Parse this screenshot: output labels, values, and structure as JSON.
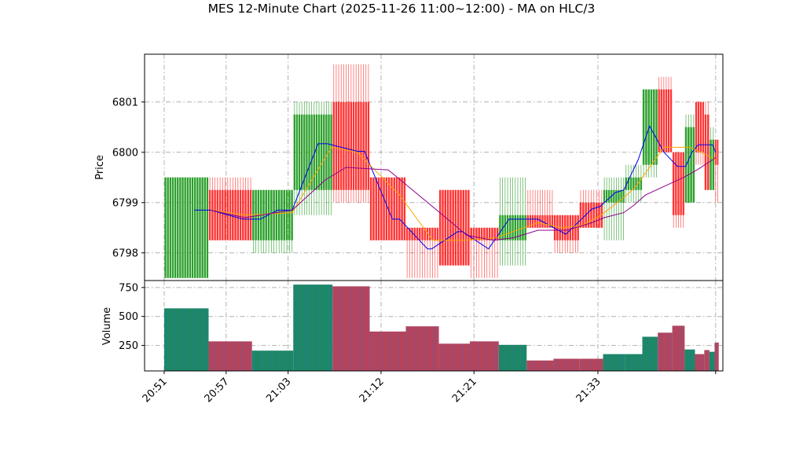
{
  "chart_data": {
    "type": "candlestick",
    "title": "MES 12-Minute Chart (2025-11-26 11:00~12:00) - MA on HLC/3",
    "price_panel": {
      "ylabel": "Price",
      "ylim": [
        6797.45,
        6801.95
      ],
      "yticks": [
        6798,
        6799,
        6800,
        6801
      ],
      "ytick_labels": [
        "6798",
        "6799",
        "6800",
        "6801"
      ],
      "grid": true
    },
    "volume_panel": {
      "ylabel": "Volume",
      "ylim": [
        30,
        810
      ],
      "yticks": [
        250,
        500,
        750
      ],
      "ytick_labels": [
        "250",
        "500",
        "750"
      ],
      "grid": true
    },
    "x_axis": {
      "tick_labels": [
        "20:51",
        "20:57",
        "21:03",
        "21:12",
        "21:21",
        "21:33"
      ],
      "tick_positions_minutes": [
        0,
        6,
        12,
        21,
        30,
        42
      ],
      "xlim_minutes": [
        -1.9,
        54.1
      ]
    },
    "candles": [
      {
        "t": 0,
        "w": 4.3,
        "open": 6799.5,
        "high": 6799.5,
        "low": 6797.5,
        "close": 6797.5,
        "volume": 570,
        "dir": "up"
      },
      {
        "t": 4.3,
        "w": 4.2,
        "open": 6799.25,
        "high": 6799.5,
        "low": 6798.25,
        "close": 6798.25,
        "volume": 285,
        "dir": "down"
      },
      {
        "t": 8.5,
        "w": 4.0,
        "open": 6799.25,
        "high": 6799.25,
        "low": 6798.0,
        "close": 6798.25,
        "volume": 205,
        "dir": "up"
      },
      {
        "t": 12.5,
        "w": 3.8,
        "open": 6800.75,
        "high": 6801.0,
        "low": 6798.75,
        "close": 6799.25,
        "volume": 775,
        "dir": "up"
      },
      {
        "t": 16.3,
        "w": 3.6,
        "open": 6801.0,
        "high": 6801.75,
        "low": 6799.0,
        "close": 6799.25,
        "volume": 760,
        "dir": "down"
      },
      {
        "t": 19.9,
        "w": 3.5,
        "open": 6799.5,
        "high": 6799.5,
        "low": 6798.25,
        "close": 6798.25,
        "volume": 370,
        "dir": "down"
      },
      {
        "t": 23.4,
        "w": 3.2,
        "open": 6798.5,
        "high": 6798.5,
        "low": 6797.5,
        "close": 6798.25,
        "volume": 415,
        "dir": "down"
      },
      {
        "t": 26.6,
        "w": 3.0,
        "open": 6799.25,
        "high": 6799.25,
        "low": 6797.75,
        "close": 6797.75,
        "volume": 265,
        "dir": "down"
      },
      {
        "t": 29.6,
        "w": 2.8,
        "open": 6798.5,
        "high": 6798.5,
        "low": 6797.5,
        "close": 6798.25,
        "volume": 285,
        "dir": "down"
      },
      {
        "t": 32.4,
        "w": 2.7,
        "open": 6798.25,
        "high": 6799.5,
        "low": 6797.75,
        "close": 6798.75,
        "volume": 255,
        "dir": "up"
      },
      {
        "t": 35.1,
        "w": 2.6,
        "open": 6798.75,
        "high": 6799.25,
        "low": 6798.5,
        "close": 6798.5,
        "volume": 120,
        "dir": "down"
      },
      {
        "t": 37.7,
        "w": 2.5,
        "open": 6798.75,
        "high": 6798.75,
        "low": 6798.0,
        "close": 6798.25,
        "volume": 135,
        "dir": "down"
      },
      {
        "t": 40.2,
        "w": 2.3,
        "open": 6799.0,
        "high": 6799.25,
        "low": 6798.5,
        "close": 6798.5,
        "volume": 135,
        "dir": "down"
      },
      {
        "t": 42.5,
        "w": 2.1,
        "open": 6799.25,
        "high": 6799.5,
        "low": 6798.25,
        "close": 6799.0,
        "volume": 175,
        "dir": "up"
      },
      {
        "t": 44.6,
        "w": 1.7,
        "open": 6799.5,
        "high": 6799.75,
        "low": 6799.0,
        "close": 6799.25,
        "volume": 175,
        "dir": "up"
      },
      {
        "t": 46.3,
        "w": 1.5,
        "open": 6801.25,
        "high": 6801.25,
        "low": 6799.5,
        "close": 6799.75,
        "volume": 325,
        "dir": "up"
      },
      {
        "t": 47.8,
        "w": 1.4,
        "open": 6801.25,
        "high": 6801.5,
        "low": 6800.0,
        "close": 6800.0,
        "volume": 360,
        "dir": "down"
      },
      {
        "t": 49.2,
        "w": 1.2,
        "open": 6800.0,
        "high": 6800.0,
        "low": 6798.5,
        "close": 6798.75,
        "volume": 420,
        "dir": "down"
      },
      {
        "t": 50.4,
        "w": 1.0,
        "open": 6800.5,
        "high": 6800.75,
        "low": 6799.0,
        "close": 6799.0,
        "volume": 215,
        "dir": "up"
      },
      {
        "t": 51.4,
        "w": 0.9,
        "open": 6801.0,
        "high": 6801.0,
        "low": 6799.75,
        "close": 6800.0,
        "volume": 175,
        "dir": "down"
      },
      {
        "t": 52.3,
        "w": 0.5,
        "open": 6800.75,
        "high": 6801.0,
        "low": 6799.25,
        "close": 6799.25,
        "volume": 210,
        "dir": "down"
      },
      {
        "t": 52.8,
        "w": 0.5,
        "open": 6800.25,
        "high": 6800.5,
        "low": 6799.25,
        "close": 6799.25,
        "volume": 195,
        "dir": "up"
      },
      {
        "t": 53.3,
        "w": 0.4,
        "open": 6800.25,
        "high": 6800.25,
        "low": 6799.0,
        "close": 6799.75,
        "volume": 275,
        "dir": "down"
      }
    ],
    "ma_series": [
      {
        "name": "",
        "color": "#0000ee",
        "points": [
          [
            2.9,
            6798.85
          ],
          [
            4.5,
            6798.85
          ],
          [
            7.6,
            6798.67
          ],
          [
            9.3,
            6798.67
          ],
          [
            11,
            6798.85
          ],
          [
            12.4,
            6798.85
          ],
          [
            14.9,
            6800.17
          ],
          [
            15.8,
            6800.17
          ],
          [
            18.7,
            6800.02
          ],
          [
            19.4,
            6800.02
          ],
          [
            22.1,
            6798.67
          ],
          [
            22.8,
            6798.67
          ],
          [
            25.5,
            6798.08
          ],
          [
            25.9,
            6798.08
          ],
          [
            28.4,
            6798.42
          ],
          [
            28.9,
            6798.42
          ],
          [
            31.4,
            6798.08
          ],
          [
            33.4,
            6798.67
          ],
          [
            36.2,
            6798.67
          ],
          [
            38.9,
            6798.37
          ],
          [
            41.4,
            6798.87
          ],
          [
            42.2,
            6798.92
          ],
          [
            43.7,
            6799.2
          ],
          [
            44.5,
            6799.25
          ],
          [
            45.9,
            6799.85
          ],
          [
            47.0,
            6800.52
          ],
          [
            48.4,
            6800.0
          ],
          [
            49.7,
            6799.72
          ],
          [
            50.5,
            6799.72
          ],
          [
            51.1,
            6800.0
          ],
          [
            51.7,
            6800.15
          ],
          [
            53.1,
            6800.15
          ],
          [
            53.4,
            6800.0
          ]
        ]
      },
      {
        "name": "",
        "color": "#ffa500",
        "points": [
          [
            4.5,
            6798.85
          ],
          [
            7.8,
            6798.75
          ],
          [
            12.4,
            6798.8
          ],
          [
            16.2,
            6800.1
          ],
          [
            18.7,
            6800.0
          ],
          [
            22.8,
            6799.15
          ],
          [
            26.0,
            6798.25
          ],
          [
            29.0,
            6798.25
          ],
          [
            32.1,
            6798.3
          ],
          [
            36.2,
            6798.6
          ],
          [
            38.6,
            6798.5
          ],
          [
            40.5,
            6798.55
          ],
          [
            42.3,
            6798.75
          ],
          [
            44.5,
            6799.1
          ],
          [
            45.6,
            6799.3
          ],
          [
            47.0,
            6799.7
          ],
          [
            48.4,
            6800.1
          ],
          [
            49.7,
            6800.1
          ],
          [
            50.9,
            6800.1
          ],
          [
            52.0,
            6800.0
          ],
          [
            53.4,
            6799.85
          ]
        ]
      },
      {
        "name": "",
        "color": "#8b008b",
        "points": [
          [
            4.5,
            6798.85
          ],
          [
            7.8,
            6798.7
          ],
          [
            12.4,
            6798.85
          ],
          [
            15.6,
            6799.45
          ],
          [
            17.6,
            6799.7
          ],
          [
            21.7,
            6799.65
          ],
          [
            26.4,
            6798.85
          ],
          [
            29.3,
            6798.35
          ],
          [
            31.9,
            6798.25
          ],
          [
            33.8,
            6798.3
          ],
          [
            36.2,
            6798.45
          ],
          [
            39.0,
            6798.45
          ],
          [
            41.4,
            6798.6
          ],
          [
            42.6,
            6798.7
          ],
          [
            44.5,
            6798.8
          ],
          [
            45.5,
            6798.95
          ],
          [
            46.6,
            6799.15
          ],
          [
            48.7,
            6799.35
          ],
          [
            50.3,
            6799.5
          ],
          [
            51.6,
            6799.65
          ],
          [
            53.1,
            6799.85
          ],
          [
            53.4,
            6799.9
          ]
        ]
      }
    ],
    "colors": {
      "up": "#2ca02c",
      "down": "#ff3333",
      "grid": "#b0b0b0",
      "volume_up": "#1a8a5a",
      "volume_down": "#c04050"
    }
  }
}
